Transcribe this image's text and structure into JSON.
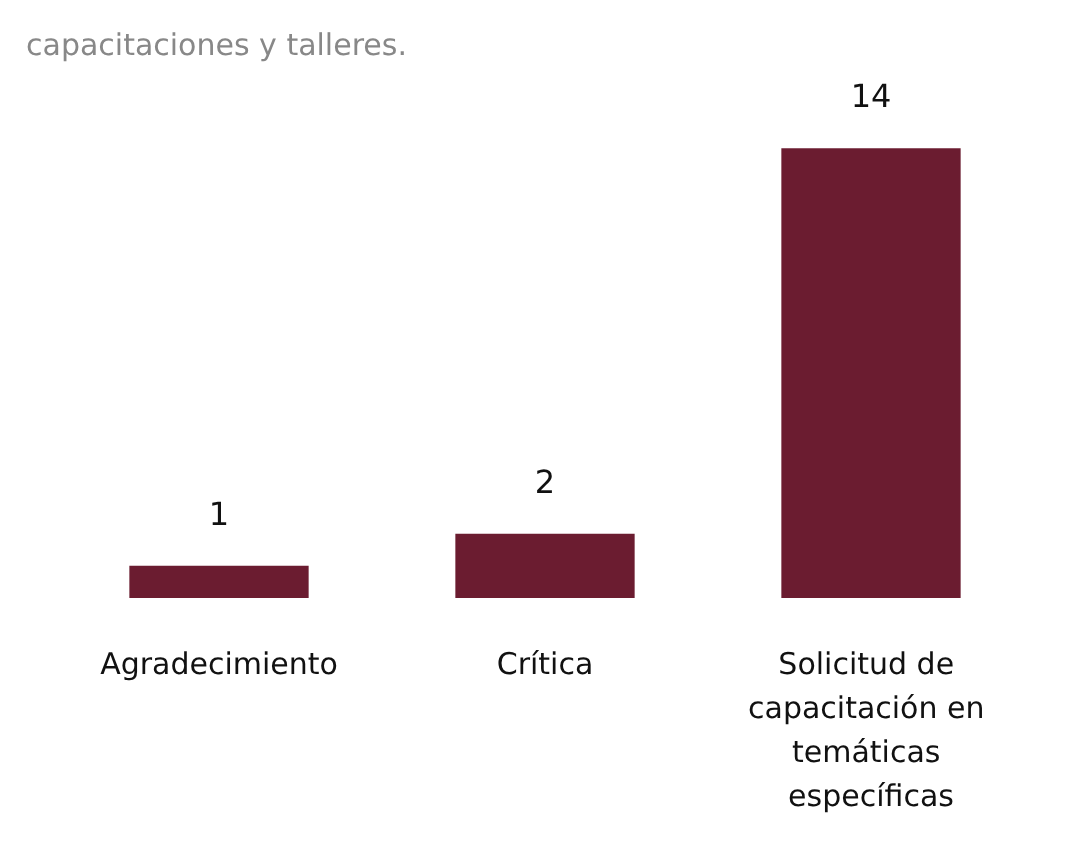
{
  "chart_data": {
    "type": "bar",
    "title": "capacitaciones y talleres.",
    "categories": [
      "Agradecimiento",
      "Crítica",
      "Solicitud de capacitación en temáticas específicas"
    ],
    "values": [
      1,
      2,
      14
    ],
    "color": "#6b1c30",
    "data_labels": true
  }
}
